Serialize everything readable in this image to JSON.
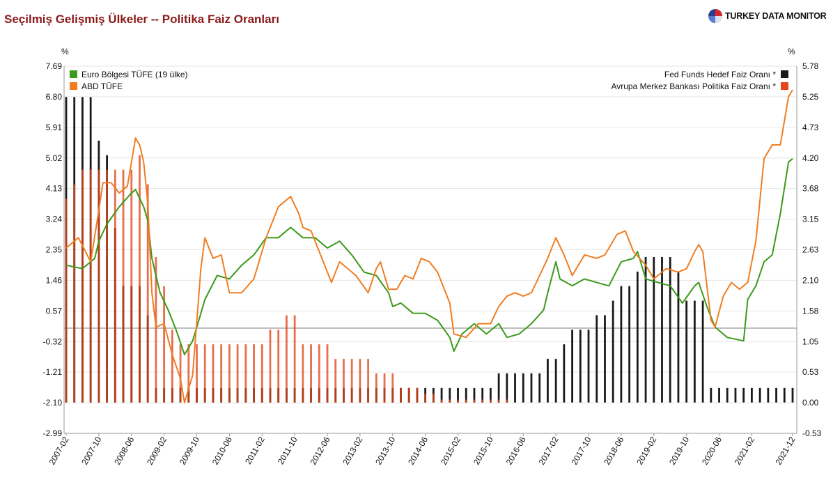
{
  "header": {
    "title": "Seçilmiş Gelişmiş Ülkeler -- Politika Faiz Oranları",
    "brand": "TURKEY DATA MONITOR"
  },
  "colors": {
    "euro_cpi": "#3a9a1a",
    "us_cpi": "#f07d22",
    "fed": "#1a1a1a",
    "ecb": "#e2471a",
    "title": "#8b1a1a"
  },
  "chart_data": {
    "type": "line",
    "left_axis_unit": "%",
    "right_axis_unit": "%",
    "left_ticks": [
      "7.69",
      "6.80",
      "5.91",
      "5.02",
      "4.13",
      "3.24",
      "2.35",
      "1.46",
      "0.57",
      "-0.32",
      "-1.21",
      "-2.10",
      "-2.99"
    ],
    "right_ticks": [
      "5.78",
      "5.25",
      "4.73",
      "4.20",
      "3.68",
      "3.15",
      "2.63",
      "2.10",
      "1.58",
      "1.05",
      "0.53",
      "0.00",
      "-0.53"
    ],
    "left_ylim": [
      -2.99,
      7.69
    ],
    "right_ylim": [
      -0.53,
      5.78
    ],
    "x_ticks": [
      "2007-02",
      "2007-10",
      "2008-06",
      "2009-02",
      "2009-10",
      "2010-06",
      "2011-02",
      "2011-10",
      "2012-06",
      "2013-02",
      "2013-10",
      "2014-06",
      "2015-02",
      "2015-10",
      "2016-06",
      "2017-02",
      "2017-10",
      "2018-06",
      "2019-02",
      "2019-10",
      "2020-06",
      "2021-02",
      "2021-12"
    ],
    "x_range": [
      "2007-02",
      "2021-12"
    ],
    "legend": [
      {
        "name": "Euro Bölgesi TÜFE (19 ülke)",
        "axis": "left",
        "color": "#3a9a1a"
      },
      {
        "name": "ABD TÜFE",
        "axis": "left",
        "color": "#f07d22"
      },
      {
        "name": "Fed Funds Hedef Faiz Oranı *",
        "axis": "right",
        "color": "#1a1a1a"
      },
      {
        "name": "Avrupa Merkez Bankası Politika Faiz Oranı *",
        "axis": "right",
        "color": "#e2471a"
      }
    ],
    "series": [
      {
        "name": "Euro Bölgesi TÜFE (19 ülke)",
        "type": "line",
        "axis": "left",
        "points": [
          [
            "2007-02",
            1.9
          ],
          [
            "2007-06",
            1.8
          ],
          [
            "2007-09",
            2.1
          ],
          [
            "2007-10",
            2.6
          ],
          [
            "2007-12",
            3.1
          ],
          [
            "2008-03",
            3.6
          ],
          [
            "2008-06",
            4.0
          ],
          [
            "2008-07",
            4.1
          ],
          [
            "2008-09",
            3.6
          ],
          [
            "2008-10",
            3.2
          ],
          [
            "2008-11",
            2.1
          ],
          [
            "2008-12",
            1.6
          ],
          [
            "2009-01",
            1.1
          ],
          [
            "2009-03",
            0.6
          ],
          [
            "2009-05",
            0.0
          ],
          [
            "2009-07",
            -0.7
          ],
          [
            "2009-09",
            -0.3
          ],
          [
            "2009-11",
            0.5
          ],
          [
            "2009-12",
            0.9
          ],
          [
            "2010-03",
            1.6
          ],
          [
            "2010-06",
            1.5
          ],
          [
            "2010-09",
            1.9
          ],
          [
            "2010-12",
            2.2
          ],
          [
            "2011-03",
            2.7
          ],
          [
            "2011-06",
            2.7
          ],
          [
            "2011-09",
            3.0
          ],
          [
            "2011-12",
            2.7
          ],
          [
            "2012-03",
            2.7
          ],
          [
            "2012-06",
            2.4
          ],
          [
            "2012-09",
            2.6
          ],
          [
            "2012-12",
            2.2
          ],
          [
            "2013-03",
            1.7
          ],
          [
            "2013-06",
            1.6
          ],
          [
            "2013-09",
            1.1
          ],
          [
            "2013-10",
            0.7
          ],
          [
            "2013-12",
            0.8
          ],
          [
            "2014-03",
            0.5
          ],
          [
            "2014-06",
            0.5
          ],
          [
            "2014-09",
            0.3
          ],
          [
            "2014-12",
            -0.2
          ],
          [
            "2015-01",
            -0.6
          ],
          [
            "2015-03",
            -0.1
          ],
          [
            "2015-06",
            0.2
          ],
          [
            "2015-09",
            -0.1
          ],
          [
            "2015-12",
            0.2
          ],
          [
            "2016-02",
            -0.2
          ],
          [
            "2016-05",
            -0.1
          ],
          [
            "2016-08",
            0.2
          ],
          [
            "2016-11",
            0.6
          ],
          [
            "2016-12",
            1.1
          ],
          [
            "2017-02",
            2.0
          ],
          [
            "2017-03",
            1.5
          ],
          [
            "2017-06",
            1.3
          ],
          [
            "2017-09",
            1.5
          ],
          [
            "2017-12",
            1.4
          ],
          [
            "2018-03",
            1.3
          ],
          [
            "2018-06",
            2.0
          ],
          [
            "2018-09",
            2.1
          ],
          [
            "2018-10",
            2.3
          ],
          [
            "2018-12",
            1.5
          ],
          [
            "2019-03",
            1.4
          ],
          [
            "2019-06",
            1.3
          ],
          [
            "2019-09",
            0.8
          ],
          [
            "2019-12",
            1.3
          ],
          [
            "2020-01",
            1.4
          ],
          [
            "2020-03",
            0.7
          ],
          [
            "2020-05",
            0.1
          ],
          [
            "2020-08",
            -0.2
          ],
          [
            "2020-12",
            -0.3
          ],
          [
            "2021-01",
            0.9
          ],
          [
            "2021-03",
            1.3
          ],
          [
            "2021-05",
            2.0
          ],
          [
            "2021-07",
            2.2
          ],
          [
            "2021-09",
            3.4
          ],
          [
            "2021-11",
            4.9
          ],
          [
            "2021-12",
            5.0
          ]
        ]
      },
      {
        "name": "ABD TÜFE",
        "type": "line",
        "axis": "left",
        "points": [
          [
            "2007-02",
            2.4
          ],
          [
            "2007-05",
            2.7
          ],
          [
            "2007-08",
            2.0
          ],
          [
            "2007-10",
            3.5
          ],
          [
            "2007-11",
            4.3
          ],
          [
            "2008-01",
            4.3
          ],
          [
            "2008-03",
            4.0
          ],
          [
            "2008-05",
            4.2
          ],
          [
            "2008-07",
            5.6
          ],
          [
            "2008-08",
            5.4
          ],
          [
            "2008-09",
            4.9
          ],
          [
            "2008-10",
            3.7
          ],
          [
            "2008-11",
            1.1
          ],
          [
            "2008-12",
            0.1
          ],
          [
            "2009-02",
            0.2
          ],
          [
            "2009-04",
            -0.7
          ],
          [
            "2009-06",
            -1.4
          ],
          [
            "2009-07",
            -2.1
          ],
          [
            "2009-09",
            -1.3
          ],
          [
            "2009-11",
            1.8
          ],
          [
            "2009-12",
            2.7
          ],
          [
            "2010-02",
            2.1
          ],
          [
            "2010-04",
            2.2
          ],
          [
            "2010-06",
            1.1
          ],
          [
            "2010-09",
            1.1
          ],
          [
            "2010-12",
            1.5
          ],
          [
            "2011-03",
            2.7
          ],
          [
            "2011-06",
            3.6
          ],
          [
            "2011-09",
            3.9
          ],
          [
            "2011-11",
            3.4
          ],
          [
            "2011-12",
            3.0
          ],
          [
            "2012-02",
            2.9
          ],
          [
            "2012-04",
            2.3
          ],
          [
            "2012-07",
            1.4
          ],
          [
            "2012-09",
            2.0
          ],
          [
            "2012-11",
            1.8
          ],
          [
            "2013-01",
            1.6
          ],
          [
            "2013-04",
            1.1
          ],
          [
            "2013-06",
            1.8
          ],
          [
            "2013-07",
            2.0
          ],
          [
            "2013-09",
            1.2
          ],
          [
            "2013-11",
            1.2
          ],
          [
            "2014-01",
            1.6
          ],
          [
            "2014-03",
            1.5
          ],
          [
            "2014-05",
            2.1
          ],
          [
            "2014-07",
            2.0
          ],
          [
            "2014-09",
            1.7
          ],
          [
            "2014-12",
            0.8
          ],
          [
            "2015-01",
            -0.1
          ],
          [
            "2015-04",
            -0.2
          ],
          [
            "2015-07",
            0.2
          ],
          [
            "2015-10",
            0.2
          ],
          [
            "2015-12",
            0.7
          ],
          [
            "2016-02",
            1.0
          ],
          [
            "2016-04",
            1.1
          ],
          [
            "2016-06",
            1.0
          ],
          [
            "2016-08",
            1.1
          ],
          [
            "2016-10",
            1.6
          ],
          [
            "2016-12",
            2.1
          ],
          [
            "2017-02",
            2.7
          ],
          [
            "2017-04",
            2.2
          ],
          [
            "2017-06",
            1.6
          ],
          [
            "2017-09",
            2.2
          ],
          [
            "2017-12",
            2.1
          ],
          [
            "2018-02",
            2.2
          ],
          [
            "2018-05",
            2.8
          ],
          [
            "2018-07",
            2.9
          ],
          [
            "2018-09",
            2.3
          ],
          [
            "2018-12",
            1.9
          ],
          [
            "2019-02",
            1.5
          ],
          [
            "2019-05",
            1.8
          ],
          [
            "2019-08",
            1.7
          ],
          [
            "2019-10",
            1.8
          ],
          [
            "2019-12",
            2.3
          ],
          [
            "2020-01",
            2.5
          ],
          [
            "2020-02",
            2.3
          ],
          [
            "2020-04",
            0.3
          ],
          [
            "2020-05",
            0.1
          ],
          [
            "2020-07",
            1.0
          ],
          [
            "2020-09",
            1.4
          ],
          [
            "2020-11",
            1.2
          ],
          [
            "2021-01",
            1.4
          ],
          [
            "2021-03",
            2.6
          ],
          [
            "2021-05",
            5.0
          ],
          [
            "2021-07",
            5.4
          ],
          [
            "2021-09",
            5.4
          ],
          [
            "2021-11",
            6.8
          ],
          [
            "2021-12",
            7.0
          ]
        ]
      },
      {
        "name": "Fed Funds Hedef Faiz Oranı *",
        "type": "bar",
        "axis": "right",
        "steps": [
          [
            "2007-02",
            5.25
          ],
          [
            "2007-09",
            4.75
          ],
          [
            "2007-10",
            4.5
          ],
          [
            "2007-12",
            4.25
          ],
          [
            "2008-01",
            3.0
          ],
          [
            "2008-03",
            2.25
          ],
          [
            "2008-04",
            2.0
          ],
          [
            "2008-10",
            1.5
          ],
          [
            "2008-11",
            1.0
          ],
          [
            "2008-12",
            0.25
          ],
          [
            "2015-12",
            0.5
          ],
          [
            "2016-12",
            0.75
          ],
          [
            "2017-03",
            1.0
          ],
          [
            "2017-06",
            1.25
          ],
          [
            "2017-12",
            1.5
          ],
          [
            "2018-03",
            1.75
          ],
          [
            "2018-06",
            2.0
          ],
          [
            "2018-09",
            2.25
          ],
          [
            "2018-12",
            2.5
          ],
          [
            "2019-08",
            2.25
          ],
          [
            "2019-09",
            2.0
          ],
          [
            "2019-10",
            1.75
          ],
          [
            "2020-03",
            0.25
          ],
          [
            "2021-12",
            0.25
          ]
        ]
      },
      {
        "name": "Avrupa Merkez Bankası Politika Faiz Oranı *",
        "type": "bar",
        "axis": "right",
        "steps": [
          [
            "2007-02",
            3.5
          ],
          [
            "2007-03",
            3.75
          ],
          [
            "2007-06",
            4.0
          ],
          [
            "2008-07",
            4.25
          ],
          [
            "2008-10",
            3.75
          ],
          [
            "2008-11",
            3.25
          ],
          [
            "2008-12",
            2.5
          ],
          [
            "2009-01",
            2.0
          ],
          [
            "2009-03",
            1.5
          ],
          [
            "2009-04",
            1.25
          ],
          [
            "2009-05",
            1.0
          ],
          [
            "2011-04",
            1.25
          ],
          [
            "2011-07",
            1.5
          ],
          [
            "2011-11",
            1.25
          ],
          [
            "2011-12",
            1.0
          ],
          [
            "2012-07",
            0.75
          ],
          [
            "2013-05",
            0.5
          ],
          [
            "2013-11",
            0.25
          ],
          [
            "2014-06",
            0.15
          ],
          [
            "2014-09",
            0.05
          ],
          [
            "2016-03",
            0.0
          ],
          [
            "2021-12",
            0.0
          ]
        ]
      }
    ],
    "zero_line_left": -0.32,
    "grid": true
  }
}
